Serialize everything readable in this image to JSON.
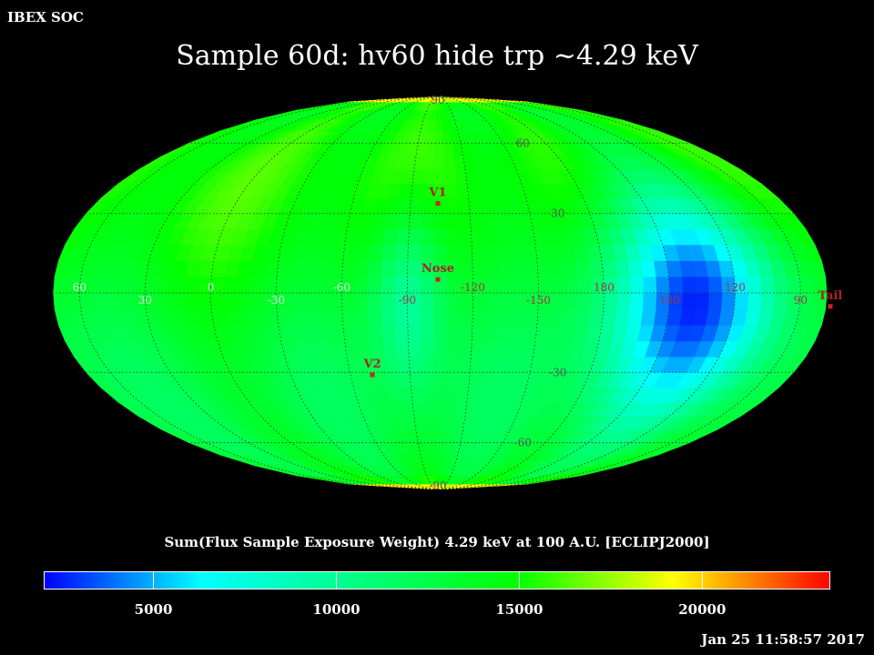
{
  "header": {
    "org": "IBEX SOC",
    "title": "Sample 60d: hv60 hide trp ~4.29 keV"
  },
  "footer": {
    "timestamp": "Jan 25 11:58:57 2017"
  },
  "chart_data": {
    "type": "heatmap",
    "projection": "mollweide",
    "title": "Sample 60d: hv60 hide trp ~4.29 keV",
    "colorbar": {
      "label": "Sum(Flux Sample Exposure Weight)  4.29 keV at 100 A.U. [ECLIPJ2000]",
      "range": [
        2000,
        23500
      ],
      "ticks": [
        {
          "value": 5000,
          "label": "5000"
        },
        {
          "value": 10000,
          "label": "10000"
        },
        {
          "value": 15000,
          "label": "15000"
        },
        {
          "value": 20000,
          "label": "20000"
        }
      ],
      "colors": [
        "#0000ff",
        "#00ffff",
        "#00ff7f",
        "#00ff00",
        "#ffff00",
        "#ff0000"
      ]
    },
    "background_level": 14000,
    "features": [
      {
        "name": "low-flux region",
        "lon": 140,
        "lat": 0,
        "value": 3500,
        "extent_lon": 30,
        "extent_lat": 30
      },
      {
        "name": "low-flux band near nose",
        "lon": 270,
        "lat": 0,
        "value": 9000,
        "extent_lon": 12,
        "extent_lat": 25
      }
    ],
    "grid": true,
    "longitude_labels": [
      {
        "value": 60,
        "label": "60",
        "color": "#dddddd"
      },
      {
        "value": 30,
        "label": "30",
        "color": "#dddddd"
      },
      {
        "value": 0,
        "label": "0",
        "color": "#dddddd"
      },
      {
        "value": 330,
        "label": "-30",
        "color": "#dddddd"
      },
      {
        "value": 300,
        "label": "-60",
        "color": "#dddddd"
      },
      {
        "value": 270,
        "label": "-90",
        "color": "#aa3344"
      },
      {
        "value": 240,
        "label": "-120",
        "color": "#aa3344"
      },
      {
        "value": 210,
        "label": "-150",
        "color": "#aa3344"
      },
      {
        "value": 180,
        "label": "180",
        "color": "#aa3344"
      },
      {
        "value": 150,
        "label": "150",
        "color": "#aa3344"
      },
      {
        "value": 120,
        "label": "120",
        "color": "#aa3344"
      },
      {
        "value": 90,
        "label": "90",
        "color": "#aa3344"
      }
    ],
    "latitude_labels": [
      {
        "value": 90,
        "label": "90"
      },
      {
        "value": 60,
        "label": "60"
      },
      {
        "value": 30,
        "label": "30"
      },
      {
        "value": -30,
        "label": "-30"
      },
      {
        "value": -60,
        "label": "-60"
      },
      {
        "value": -90,
        "label": "-90"
      }
    ],
    "markers": [
      {
        "label": "V1",
        "lon": 256,
        "lat": 34
      },
      {
        "label": "Nose",
        "lon": 256,
        "lat": 5
      },
      {
        "label": "V2",
        "lon": 289,
        "lat": -31
      },
      {
        "label": "Tail",
        "lon": 76,
        "lat": -5
      }
    ]
  }
}
